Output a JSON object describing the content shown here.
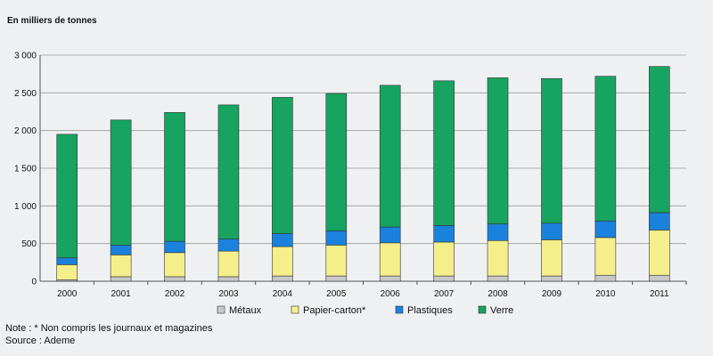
{
  "unit_label": "En milliers de tonnes",
  "note": "Note : * Non compris les journaux et magazines",
  "source": "Source : Ademe",
  "colors": {
    "metaux": "#c8c8c8",
    "papier": "#f4ef8a",
    "plastiques": "#1a82dd",
    "verre": "#16a460"
  },
  "chart_data": {
    "type": "bar",
    "stacked": true,
    "categories": [
      "2000",
      "2001",
      "2002",
      "2003",
      "2004",
      "2005",
      "2006",
      "2007",
      "2008",
      "2009",
      "2010",
      "2011"
    ],
    "ylim": [
      0,
      3000
    ],
    "yticks": [
      "0",
      "500",
      "1 000",
      "1 500",
      "2 000",
      "2 500",
      "3 000"
    ],
    "ytick_values": [
      0,
      500,
      1000,
      1500,
      2000,
      2500,
      3000
    ],
    "grid": true,
    "legend_position": "bottom",
    "series": [
      {
        "name": "Métaux",
        "color_key": "metaux",
        "values": [
          20,
          60,
          60,
          60,
          70,
          70,
          70,
          70,
          70,
          70,
          80,
          80
        ]
      },
      {
        "name": "Papier-carton*",
        "color_key": "papier",
        "values": [
          200,
          290,
          320,
          340,
          390,
          410,
          440,
          450,
          470,
          480,
          500,
          600
        ]
      },
      {
        "name": "Plastiques",
        "color_key": "plastiques",
        "values": [
          90,
          130,
          150,
          160,
          170,
          190,
          210,
          220,
          220,
          220,
          220,
          230
        ]
      },
      {
        "name": "Verre",
        "color_key": "verre",
        "values": [
          1640,
          1660,
          1710,
          1780,
          1810,
          1820,
          1880,
          1920,
          1940,
          1920,
          1920,
          1940
        ]
      }
    ]
  }
}
